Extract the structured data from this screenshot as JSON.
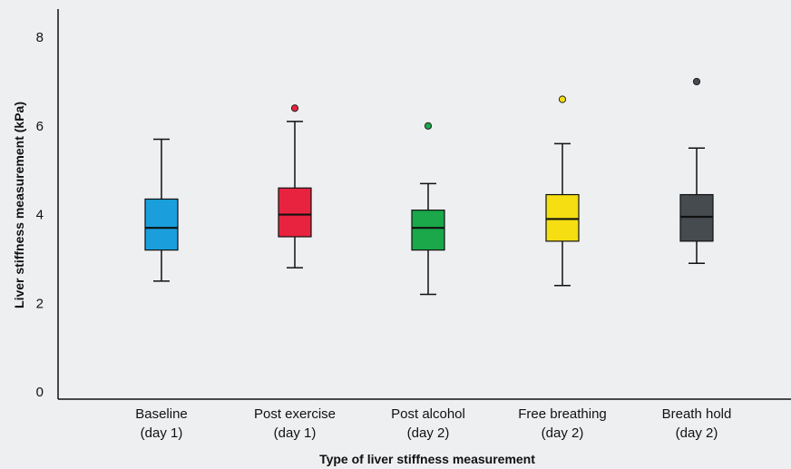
{
  "chart_data": {
    "type": "boxplot",
    "xlabel": "Type of liver stiffness measurement",
    "ylabel": "Liver stiffness measurement (kPa)",
    "ylim": [
      0,
      8.8
    ],
    "yticks": [
      0,
      2,
      4,
      6,
      8
    ],
    "grid": false,
    "categories": [
      {
        "line1": "Baseline",
        "line2": "(day 1)"
      },
      {
        "line1": "Post exercise",
        "line2": "(day 1)"
      },
      {
        "line1": "Post alcohol",
        "line2": "(day 2)"
      },
      {
        "line1": "Free breathing",
        "line2": "(day 2)"
      },
      {
        "line1": "Breath hold",
        "line2": "(day 2)"
      }
    ],
    "boxes": [
      {
        "min": 2.5,
        "q1": 3.2,
        "median": 3.7,
        "q3": 4.35,
        "max": 5.7,
        "outliers": [],
        "color": "#1a9fdc"
      },
      {
        "min": 2.8,
        "q1": 3.5,
        "median": 4.0,
        "q3": 4.6,
        "max": 6.1,
        "outliers": [
          6.4
        ],
        "color": "#e8233f"
      },
      {
        "min": 2.2,
        "q1": 3.2,
        "median": 3.7,
        "q3": 4.1,
        "max": 4.7,
        "outliers": [
          6.0
        ],
        "color": "#1aa84a"
      },
      {
        "min": 2.4,
        "q1": 3.4,
        "median": 3.9,
        "q3": 4.45,
        "max": 5.6,
        "outliers": [
          6.6
        ],
        "color": "#f5de12"
      },
      {
        "min": 2.9,
        "q1": 3.4,
        "median": 3.95,
        "q3": 4.45,
        "max": 5.5,
        "outliers": [
          7.0
        ],
        "color": "#464b50"
      }
    ]
  }
}
